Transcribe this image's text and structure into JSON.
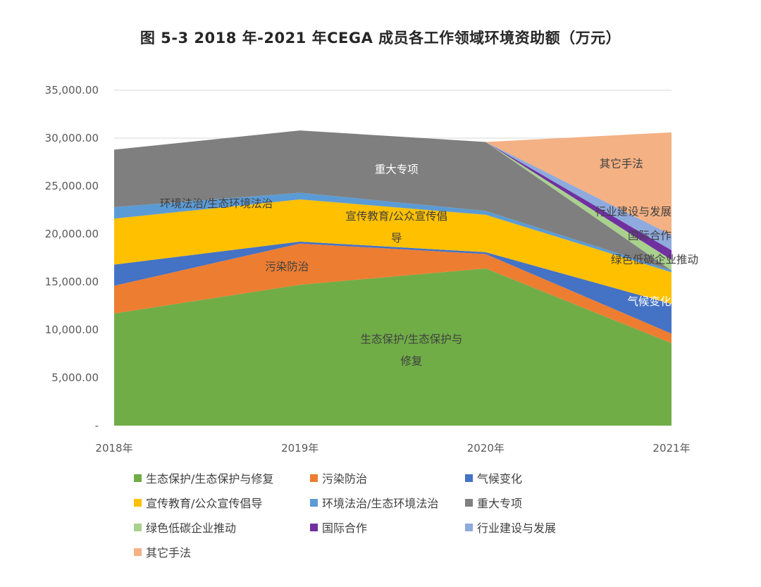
{
  "chart_data": {
    "type": "area",
    "stacked": true,
    "title": "图 5-3 2018 年-2021 年CEGA 成员各工作领域环境资助额（万元）",
    "categories": [
      "2018年",
      "2019年",
      "2020年",
      "2021年"
    ],
    "y_ticks": [
      "-",
      "5,000.00",
      "10,000.00",
      "15,000.00",
      "20,000.00",
      "25,000.00",
      "30,000.00",
      "35,000.00"
    ],
    "ylim": [
      0,
      35000
    ],
    "legend_position": "bottom",
    "series": [
      {
        "name": "生态保护/生态保护与修复",
        "values": [
          11700,
          14700,
          16400,
          8600
        ],
        "color": "#70AD47",
        "area_label": [
          "生态保护/生态保护与",
          "修复"
        ]
      },
      {
        "name": "污染防治",
        "values": [
          2900,
          4300,
          1500,
          1000
        ],
        "color": "#ED7D31",
        "area_label": [
          "污染防治"
        ]
      },
      {
        "name": "气候变化",
        "values": [
          2200,
          200,
          200,
          3100
        ],
        "color": "#4472C4",
        "area_label": [
          "气候变化"
        ]
      },
      {
        "name": "宣传教育/公众宣传倡导",
        "values": [
          4800,
          4400,
          3900,
          3300
        ],
        "color": "#FFC000",
        "area_label": [
          "宣传教育/公众宣传倡",
          "导"
        ]
      },
      {
        "name": "环境法治/生态环境法治",
        "values": [
          1200,
          700,
          400,
          200
        ],
        "color": "#5B9BD5",
        "area_label": [
          "环境法治/生态环境法治"
        ]
      },
      {
        "name": "重大专项",
        "values": [
          6000,
          6500,
          7200,
          0
        ],
        "color": "#7F7F7F",
        "area_label": [
          "重大专项"
        ]
      },
      {
        "name": "绿色低碳企业推动",
        "values": [
          0,
          0,
          0,
          1100
        ],
        "color": "#A9D18E",
        "area_label": [
          "绿色低碳企业推动"
        ]
      },
      {
        "name": "国际合作",
        "values": [
          0,
          0,
          0,
          1000
        ],
        "color": "#7030A0",
        "area_label": [
          "国际合作"
        ]
      },
      {
        "name": "行业建设与发展",
        "values": [
          0,
          0,
          0,
          1600
        ],
        "color": "#8FAADC",
        "area_label": [
          "行业建设与发展"
        ]
      },
      {
        "name": "其它手法",
        "values": [
          0,
          0,
          0,
          10700
        ],
        "color": "#F4B183",
        "area_label": [
          "其它手法"
        ]
      }
    ]
  }
}
